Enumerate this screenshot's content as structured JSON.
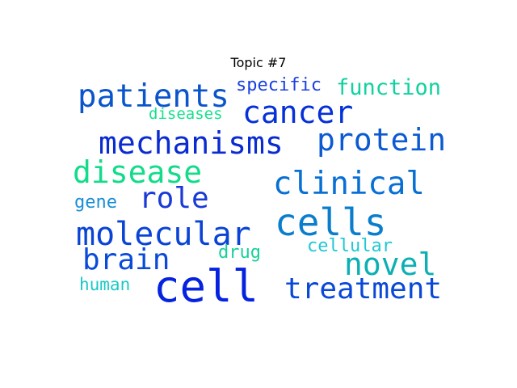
{
  "title": "Topic #7",
  "words": [
    {
      "text": "patients",
      "color": "#0a55cc"
    },
    {
      "text": "specific",
      "color": "#1a3fe0"
    },
    {
      "text": "function",
      "color": "#10d2a0"
    },
    {
      "text": "diseases",
      "color": "#18e08c"
    },
    {
      "text": "cancer",
      "color": "#0530d8"
    },
    {
      "text": "mechanisms",
      "color": "#0a2ad2"
    },
    {
      "text": "protein",
      "color": "#0b5ad2"
    },
    {
      "text": "disease",
      "color": "#12dc8a"
    },
    {
      "text": "clinical",
      "color": "#0870d4"
    },
    {
      "text": "gene",
      "color": "#1a8fd8"
    },
    {
      "text": "role",
      "color": "#1a3ad8"
    },
    {
      "text": "cells",
      "color": "#0a7ecc"
    },
    {
      "text": "molecular",
      "color": "#0a44d6"
    },
    {
      "text": "brain",
      "color": "#0a4ad8"
    },
    {
      "text": "drug",
      "color": "#18d09a"
    },
    {
      "text": "cellular",
      "color": "#20c8d4"
    },
    {
      "text": "novel",
      "color": "#0cb0b4"
    },
    {
      "text": "human",
      "color": "#1ac8c8"
    },
    {
      "text": "cell",
      "color": "#0522e0"
    },
    {
      "text": "treatment",
      "color": "#0a48d8"
    }
  ]
}
